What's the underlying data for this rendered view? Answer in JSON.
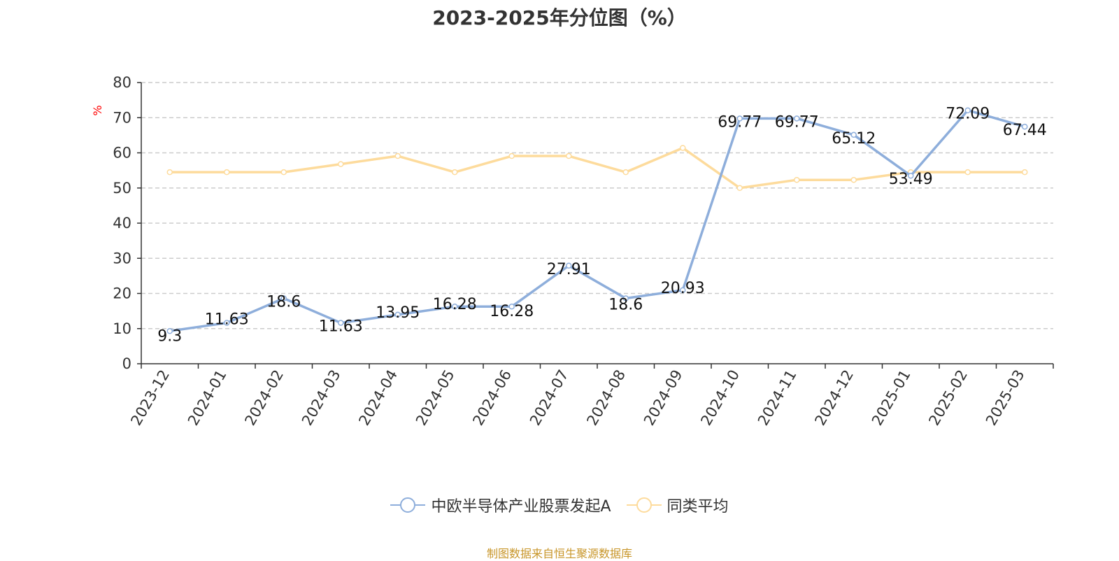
{
  "colors": {
    "series1": "#8eaedb",
    "series2": "#fddb9c",
    "source": "#c8962a",
    "ylabel": "#ff0000",
    "grid": "#cccccc",
    "axis": "#333333"
  },
  "source_text": "制图数据来自恒生聚源数据库",
  "chart_data": {
    "type": "line",
    "title": "2023-2025年分位图（%）",
    "ylabel": "%",
    "xlabel": "",
    "ylim": [
      0,
      80
    ],
    "yticks": [
      0,
      10,
      20,
      30,
      40,
      50,
      60,
      70,
      80
    ],
    "grid": true,
    "legend_position": "bottom-center",
    "categories": [
      "2023-12",
      "2024-01",
      "2024-02",
      "2024-03",
      "2024-04",
      "2024-05",
      "2024-06",
      "2024-07",
      "2024-08",
      "2024-09",
      "2024-10",
      "2024-11",
      "2024-12",
      "2025-01",
      "2025-02",
      "2025-03"
    ],
    "series": [
      {
        "name": "中欧半导体产业股票发起A",
        "values": [
          9.3,
          11.63,
          18.6,
          11.63,
          13.95,
          16.28,
          16.28,
          27.91,
          18.6,
          20.93,
          69.77,
          69.77,
          65.12,
          53.49,
          72.09,
          67.44
        ],
        "labels_shown": true
      },
      {
        "name": "同类平均",
        "values": [
          54.5,
          54.5,
          54.5,
          56.8,
          59.1,
          54.5,
          59.1,
          59.1,
          54.5,
          61.4,
          50.0,
          52.3,
          52.3,
          54.5,
          54.5,
          54.5
        ],
        "labels_shown": false
      }
    ]
  }
}
